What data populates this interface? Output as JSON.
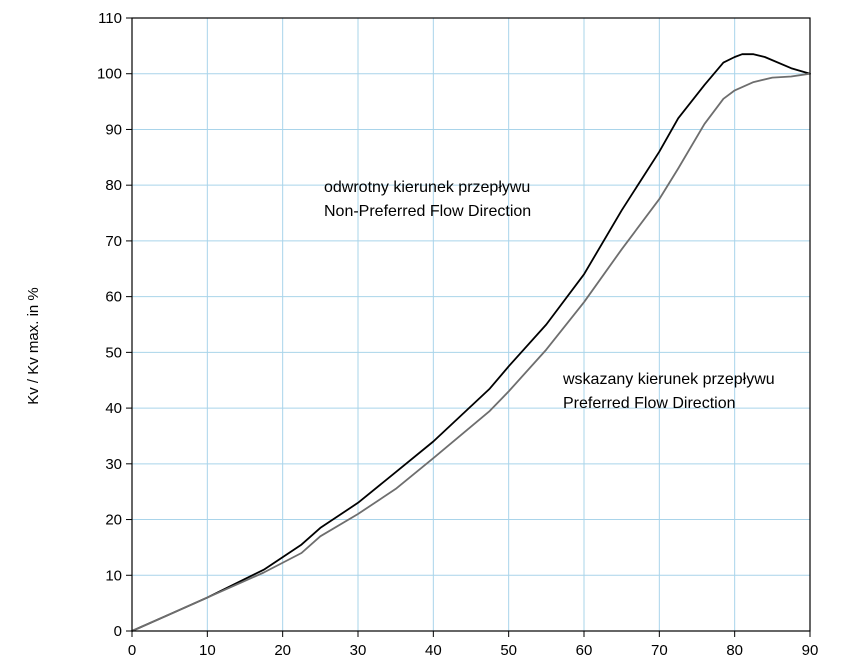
{
  "chart_data": {
    "type": "line",
    "title": "",
    "xlabel": "",
    "ylabel": "Kv / Kv max. in %",
    "xlim": [
      0,
      90
    ],
    "ylim": [
      0,
      110
    ],
    "x_ticks": [
      0,
      10,
      20,
      30,
      40,
      50,
      60,
      70,
      80,
      90
    ],
    "y_ticks": [
      0,
      10,
      20,
      30,
      40,
      50,
      60,
      70,
      80,
      90,
      100,
      110
    ],
    "grid": true,
    "legend": "none",
    "series": [
      {
        "color": "#000000",
        "points": [
          [
            0,
            0
          ],
          [
            5,
            3
          ],
          [
            10,
            6
          ],
          [
            17.5,
            11
          ],
          [
            22.5,
            15.5
          ],
          [
            25,
            18.5
          ],
          [
            30,
            23
          ],
          [
            35,
            28.5
          ],
          [
            40,
            34
          ],
          [
            47.5,
            43.5
          ],
          [
            50,
            47.5
          ],
          [
            55,
            55
          ],
          [
            60,
            64
          ],
          [
            65,
            75.5
          ],
          [
            70,
            86
          ],
          [
            72.5,
            92
          ],
          [
            76,
            98
          ],
          [
            78.5,
            102
          ],
          [
            80,
            103
          ],
          [
            81,
            103.5
          ],
          [
            82.5,
            103.5
          ],
          [
            84,
            103
          ],
          [
            87.5,
            101
          ],
          [
            90,
            100
          ]
        ]
      },
      {
        "color": "#6e6e6e",
        "points": [
          [
            0,
            0
          ],
          [
            5,
            3
          ],
          [
            10,
            6
          ],
          [
            17.5,
            10.5
          ],
          [
            22.5,
            14
          ],
          [
            25,
            17
          ],
          [
            30,
            21
          ],
          [
            35,
            25.5
          ],
          [
            40,
            31
          ],
          [
            47.5,
            39.5
          ],
          [
            50,
            43
          ],
          [
            55,
            50.5
          ],
          [
            60,
            59
          ],
          [
            65,
            68.5
          ],
          [
            70,
            77.5
          ],
          [
            72.5,
            83
          ],
          [
            76,
            91
          ],
          [
            78.5,
            95.5
          ],
          [
            80,
            97
          ],
          [
            82.5,
            98.5
          ],
          [
            85,
            99.3
          ],
          [
            87.5,
            99.5
          ],
          [
            90,
            100
          ]
        ]
      }
    ],
    "annotations": [
      {
        "line1": "odwrotny kierunek przepływu",
        "line2": "Non-Preferred Flow Direction"
      },
      {
        "line1": "wskazany kierunek przepływu",
        "line2": "Preferred Flow Direction"
      }
    ]
  }
}
